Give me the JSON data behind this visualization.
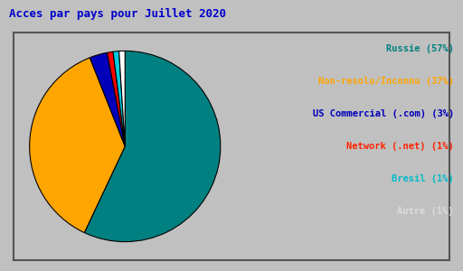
{
  "title": "Acces par pays pour Juillet 2020",
  "title_color": "#0000cc",
  "title_fontsize": 9,
  "background_color": "#c0c0c0",
  "border_color": "#888888",
  "labels": [
    "Russie (57%)",
    "Non-resolu/Inconnu (37%)",
    "US Commercial (.com) (3%)",
    "Network (.net) (1%)",
    "Bresil (1%)",
    "Autre (1%)"
  ],
  "values": [
    57,
    37,
    3,
    1,
    1,
    1
  ],
  "colors": [
    "#008080",
    "#ffa500",
    "#0000bb",
    "#ff0000",
    "#00ccdd",
    "#ffffff"
  ],
  "legend_text_colors": [
    "#008080",
    "#ffa500",
    "#0000bb",
    "#ff2200",
    "#00bbcc",
    "#dddddd"
  ],
  "startangle": 90
}
